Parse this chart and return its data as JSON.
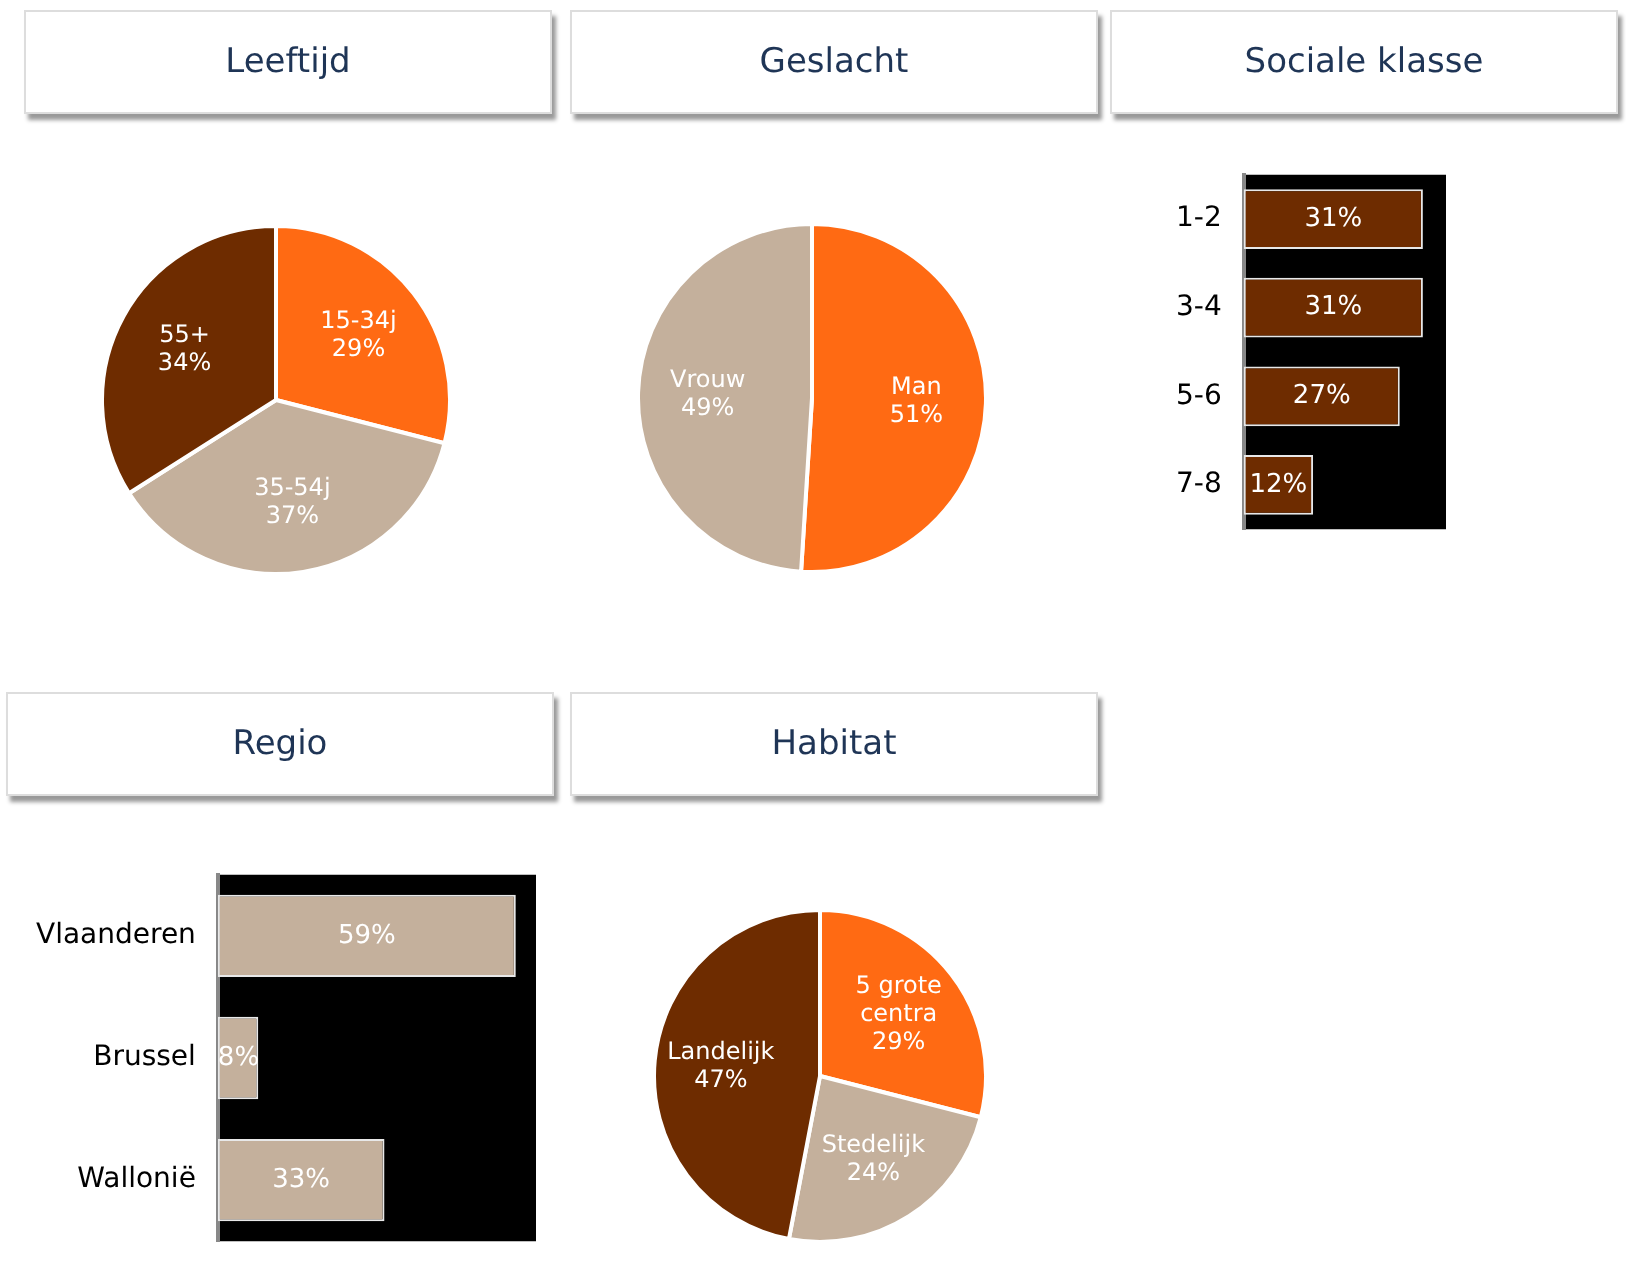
{
  "chart_data": [
    {
      "type": "pie",
      "title": "Leeftijd",
      "categories": [
        "15-34j",
        "35-54j",
        "55+"
      ],
      "values": [
        29,
        37,
        34
      ],
      "value_labels": [
        "29%",
        "37%",
        "34%"
      ],
      "colors": [
        "#ff6a13",
        "#c4b09c",
        "#6e2c00"
      ],
      "legend": false
    },
    {
      "type": "pie",
      "title": "Geslacht",
      "categories": [
        "Man",
        "Vrouw"
      ],
      "values": [
        51,
        49
      ],
      "value_labels": [
        "51%",
        "49%"
      ],
      "colors": [
        "#ff6a13",
        "#c4b09c"
      ],
      "legend": false
    },
    {
      "type": "bar",
      "orientation": "horizontal",
      "title": "Sociale klasse",
      "categories": [
        "1-2",
        "3-4",
        "5-6",
        "7-8"
      ],
      "values": [
        31,
        31,
        27,
        12
      ],
      "value_labels": [
        "31%",
        "31%",
        "27%",
        "12%"
      ],
      "color": "#6e2c00",
      "xlim": [
        0,
        35
      ],
      "tick_labels": "y",
      "legend": false
    },
    {
      "type": "bar",
      "orientation": "horizontal",
      "title": "Regio",
      "categories": [
        "Vlaanderen",
        "Brussel",
        "Wallonië"
      ],
      "values": [
        59,
        8,
        33
      ],
      "value_labels": [
        "59%",
        "8%",
        "33%"
      ],
      "color": "#c4b09c",
      "xlim": [
        0,
        63
      ],
      "tick_labels": "y",
      "legend": false
    },
    {
      "type": "pie",
      "title": "Habitat",
      "categories": [
        "5 grote centra",
        "Stedelijk",
        "Landelijk"
      ],
      "values": [
        29,
        24,
        47
      ],
      "value_labels": [
        "29%",
        "24%",
        "47%"
      ],
      "colors": [
        "#ff6a13",
        "#c4b09c",
        "#6e2c00"
      ],
      "legend": false
    }
  ]
}
